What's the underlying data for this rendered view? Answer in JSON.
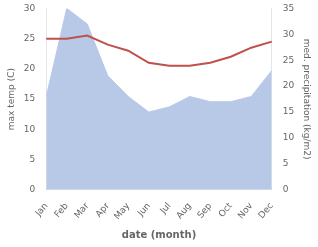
{
  "chart_data": {
    "type": "line",
    "categories": [
      "Jan",
      "Feb",
      "Mar",
      "Apr",
      "May",
      "Jun",
      "Jul",
      "Aug",
      "Sep",
      "Oct",
      "Nov",
      "Dec"
    ],
    "series": [
      {
        "color": "#c0504d",
        "values": [
          25.0,
          25.0,
          25.5,
          24.0,
          23.0,
          21.0,
          20.5,
          20.5,
          21.0,
          22.0,
          23.5,
          24.5
        ]
      },
      {
        "type": "area",
        "axis": "y2",
        "color": "#b8c9e8",
        "values": [
          18.0,
          35.0,
          32.0,
          22.0,
          18.0,
          15.0,
          16.0,
          18.0,
          17.0,
          17.0,
          18.0,
          23.0
        ]
      }
    ],
    "xlabel": "date (month)",
    "ylabel": "max temp (C)",
    "y2label": "med. precipitation (kg/m2)",
    "ylim": [
      0,
      30
    ],
    "yticks": [
      0,
      5,
      10,
      15,
      20,
      25,
      30
    ],
    "y2lim": [
      0,
      35
    ],
    "y2ticks": [
      0,
      5,
      10,
      15,
      20,
      25,
      30,
      35
    ],
    "grid": false
  }
}
